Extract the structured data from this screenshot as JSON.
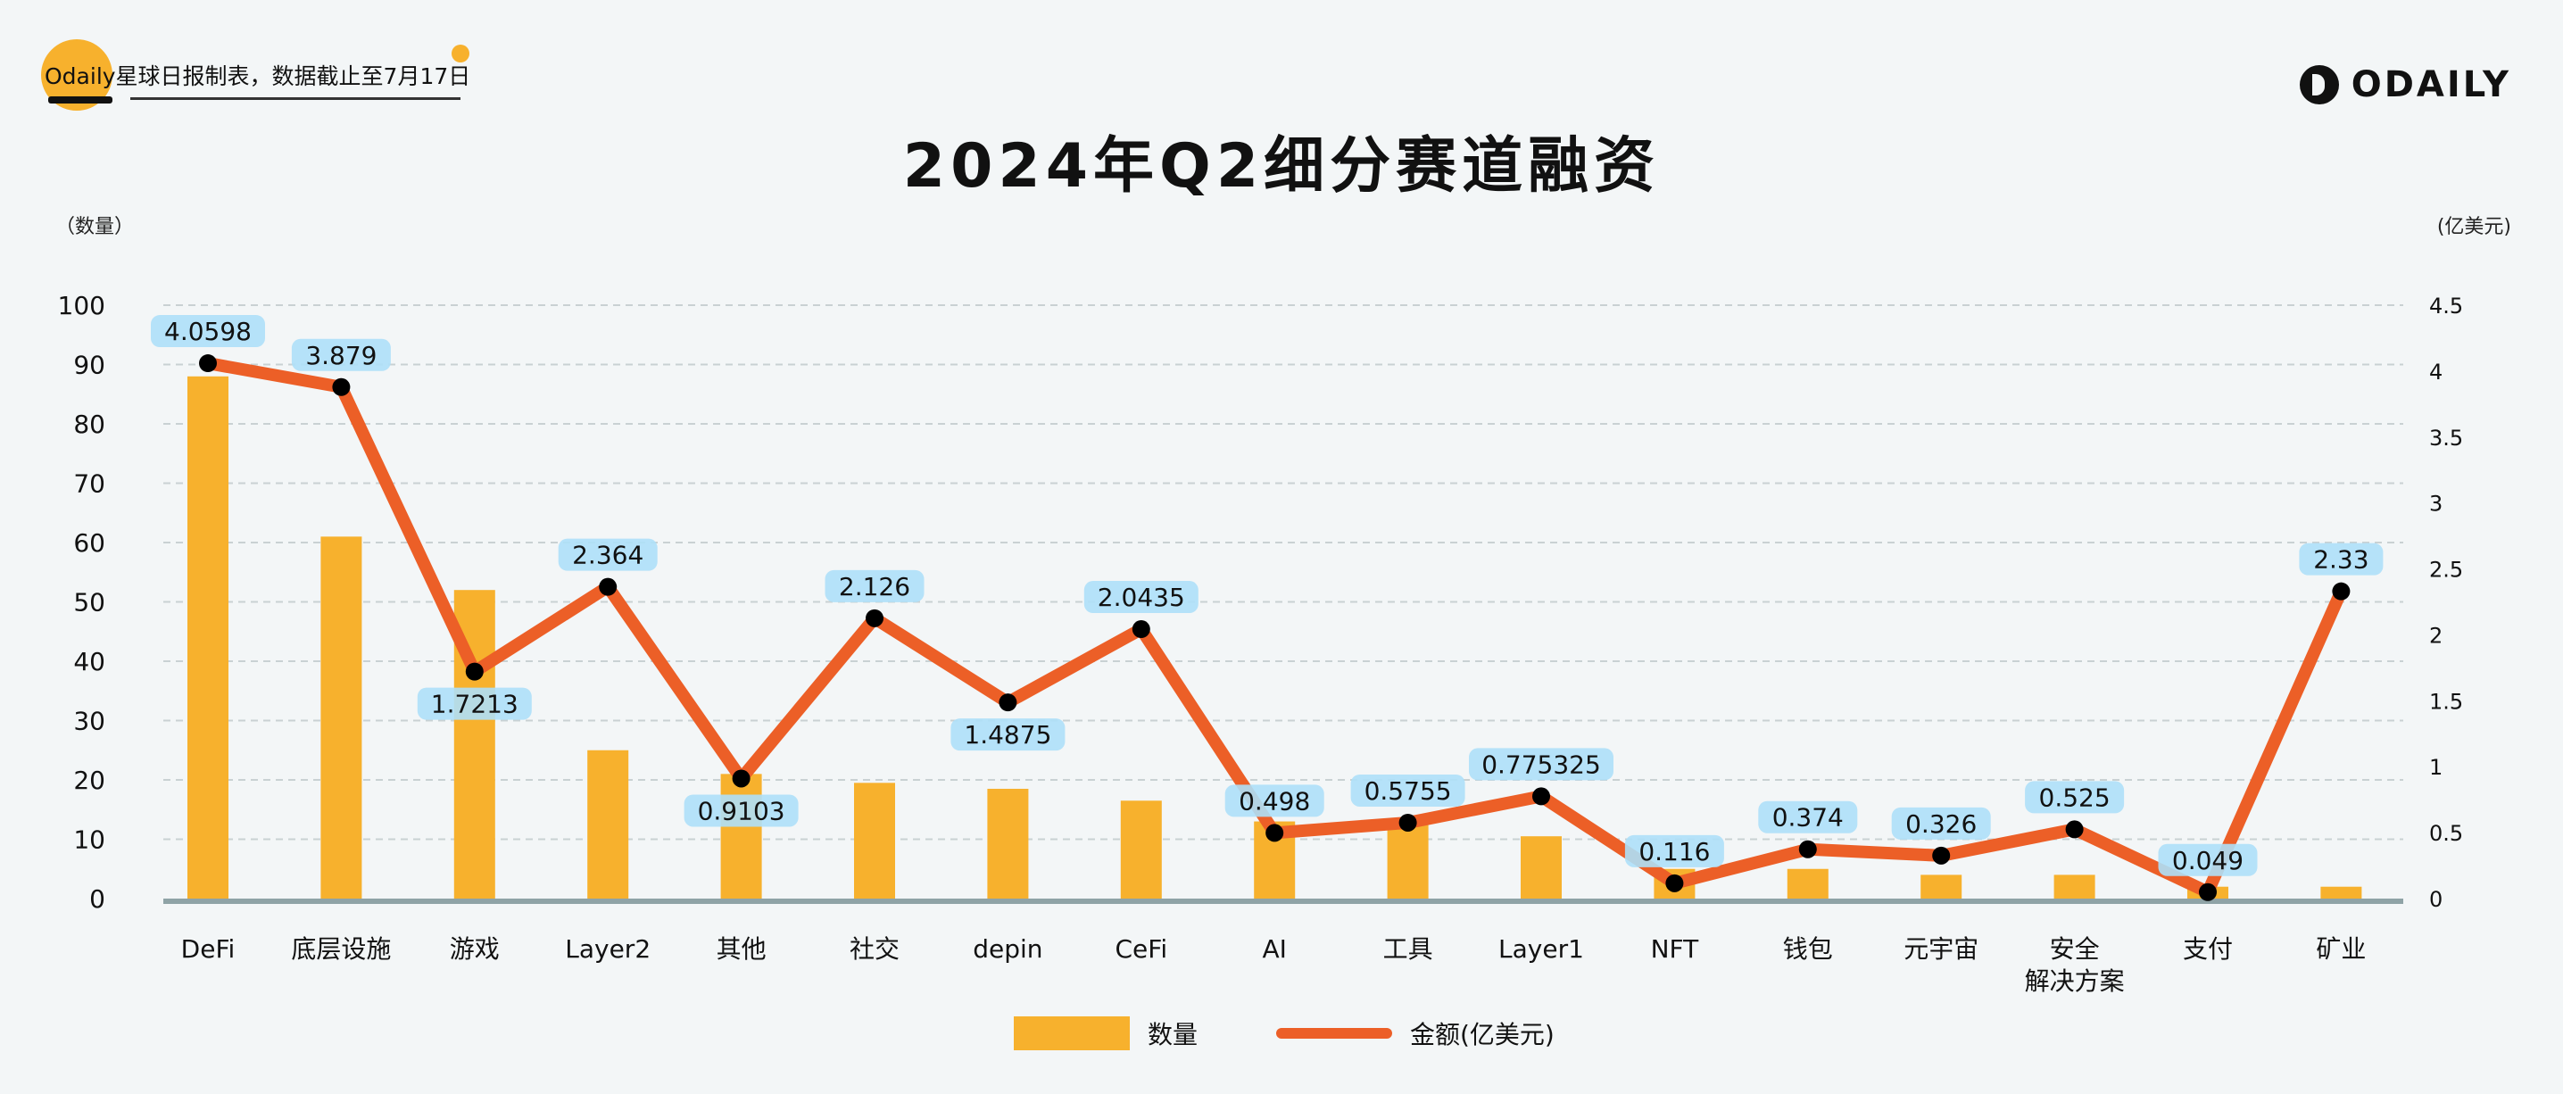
{
  "header": {
    "note": "Odaily星球日报制表，数据截止至7月17日",
    "logo_text": "ODAILY"
  },
  "colors": {
    "bar": "#f7b12d",
    "line": "#ec5f27",
    "label_bg": "#aee0f8",
    "axis": "#8fa3a6"
  },
  "chart_data": {
    "type": "bar+line",
    "title": "2024年Q2细分赛道融资",
    "ylabel_left": "（数量）",
    "ylabel_right": "(亿美元)",
    "ylim_left": [
      0,
      100
    ],
    "yticks_left": [
      "0",
      "10",
      "20",
      "30",
      "40",
      "50",
      "60",
      "70",
      "80",
      "90",
      "100"
    ],
    "ylim_right": [
      0,
      4.5
    ],
    "yticks_right": [
      "0",
      "0.5",
      "1",
      "1.5",
      "2",
      "2.5",
      "3",
      "3.5",
      "4",
      "4.5"
    ],
    "grid": true,
    "legend_position": "bottom",
    "categories": [
      "DeFi",
      "底层设施",
      "游戏",
      "Layer2",
      "其他",
      "社交",
      "depin",
      "CeFi",
      "AI",
      "工具",
      "Layer1",
      "NFT",
      "钱包",
      "元宇宙",
      "安全\n解决方案",
      "支付",
      "矿业"
    ],
    "series": [
      {
        "name": "数量",
        "type": "bar",
        "values": [
          88,
          61,
          52,
          25,
          21,
          19.5,
          18.5,
          16.5,
          13,
          12.5,
          10.5,
          5,
          5,
          4,
          4,
          2,
          2
        ]
      },
      {
        "name": "金额(亿美元)",
        "type": "line",
        "values": [
          4.0598,
          3.879,
          1.7213,
          2.364,
          0.9103,
          2.126,
          1.4875,
          2.0435,
          0.498,
          0.5755,
          0.775325,
          0.116,
          0.374,
          0.326,
          0.525,
          0.049,
          2.33
        ],
        "labels": [
          "4.0598",
          "3.879",
          "1.7213",
          "2.364",
          "0.9103",
          "2.126",
          "1.4875",
          "2.0435",
          "0.498",
          "0.5755",
          "0.775325",
          "0.116",
          "0.374",
          "0.326",
          "0.525",
          "0.049",
          "2.33"
        ]
      }
    ]
  }
}
